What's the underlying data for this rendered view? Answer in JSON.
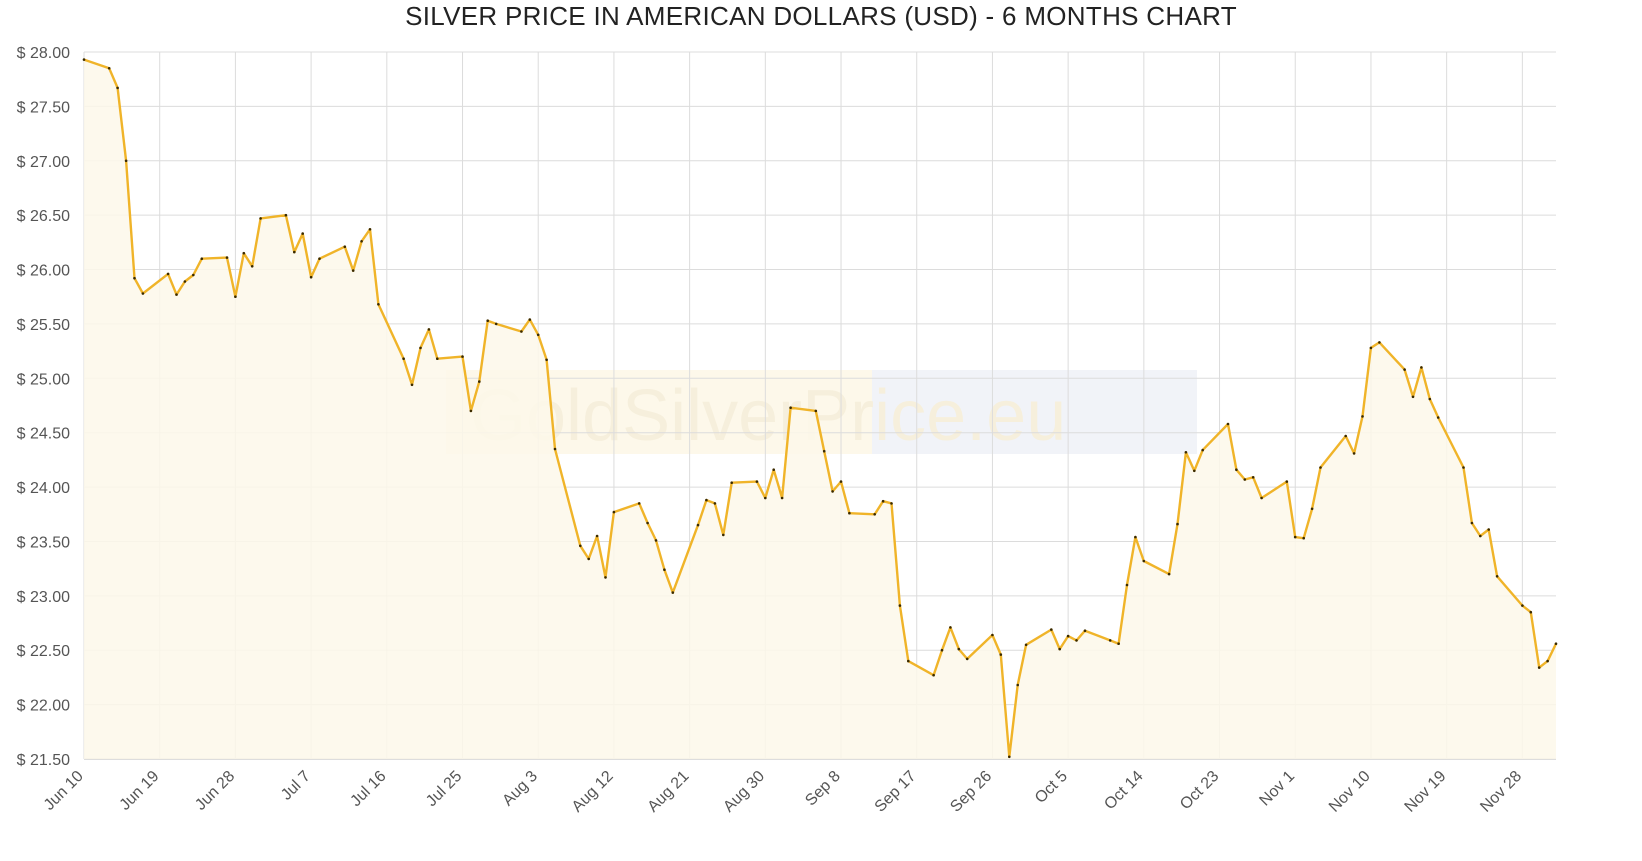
{
  "chart_data": {
    "type": "area",
    "title": "SILVER PRICE IN AMERICAN DOLLARS (USD) - 6 MONTHS CHART",
    "xlabel": "",
    "ylabel": "",
    "ylim": [
      21.5,
      28.0
    ],
    "y_ticks": [
      "$ 21.50",
      "$ 22.00",
      "$ 22.50",
      "$ 23.00",
      "$ 23.50",
      "$ 24.00",
      "$ 24.50",
      "$ 25.00",
      "$ 25.50",
      "$ 26.00",
      "$ 26.50",
      "$ 27.00",
      "$ 27.50",
      "$ 28.00"
    ],
    "x_ticks": [
      "Jun 10",
      "Jun 19",
      "Jun 28",
      "Jul 7",
      "Jul 16",
      "Jul 25",
      "Aug 3",
      "Aug 12",
      "Aug 21",
      "Aug 30",
      "Sep 8",
      "Sep 17",
      "Sep 26",
      "Oct 5",
      "Oct 14",
      "Oct 23",
      "Nov 1",
      "Nov 10",
      "Nov 19",
      "Nov 28"
    ],
    "grid": true,
    "colors": {
      "line": "#f0b429",
      "fill": "#fdf8ea",
      "marker": "#3a2a00"
    },
    "watermark": "GoldSilverPrice.eu",
    "series": [
      {
        "values": [
          [
            "Jun 10",
            27.93
          ],
          [
            "Jun 13",
            27.85
          ],
          [
            "Jun 14",
            27.67
          ],
          [
            "Jun 15",
            27.0
          ],
          [
            "Jun 16",
            25.92
          ],
          [
            "Jun 17",
            25.78
          ],
          [
            "Jun 20",
            25.96
          ],
          [
            "Jun 21",
            25.77
          ],
          [
            "Jun 22",
            25.89
          ],
          [
            "Jun 23",
            25.95
          ],
          [
            "Jun 24",
            26.1
          ],
          [
            "Jun 27",
            26.11
          ],
          [
            "Jun 28",
            25.75
          ],
          [
            "Jun 29",
            26.15
          ],
          [
            "Jun 30",
            26.03
          ],
          [
            "Jul 1",
            26.47
          ],
          [
            "Jul 4",
            26.5
          ],
          [
            "Jul 5",
            26.16
          ],
          [
            "Jul 6",
            26.33
          ],
          [
            "Jul 7",
            25.93
          ],
          [
            "Jul 8",
            26.1
          ],
          [
            "Jul 11",
            26.21
          ],
          [
            "Jul 12",
            25.99
          ],
          [
            "Jul 13",
            26.26
          ],
          [
            "Jul 14",
            26.37
          ],
          [
            "Jul 15",
            25.68
          ],
          [
            "Jul 18",
            25.18
          ],
          [
            "Jul 19",
            24.94
          ],
          [
            "Jul 20",
            25.28
          ],
          [
            "Jul 21",
            25.45
          ],
          [
            "Jul 22",
            25.18
          ],
          [
            "Jul 25",
            25.2
          ],
          [
            "Jul 26",
            24.7
          ],
          [
            "Jul 27",
            24.97
          ],
          [
            "Jul 28",
            25.53
          ],
          [
            "Jul 29",
            25.5
          ],
          [
            "Aug 1",
            25.43
          ],
          [
            "Aug 2",
            25.54
          ],
          [
            "Aug 3",
            25.4
          ],
          [
            "Aug 4",
            25.17
          ],
          [
            "Aug 5",
            24.35
          ],
          [
            "Aug 8",
            23.46
          ],
          [
            "Aug 9",
            23.34
          ],
          [
            "Aug 10",
            23.55
          ],
          [
            "Aug 11",
            23.17
          ],
          [
            "Aug 12",
            23.77
          ],
          [
            "Aug 15",
            23.85
          ],
          [
            "Aug 16",
            23.67
          ],
          [
            "Aug 17",
            23.51
          ],
          [
            "Aug 18",
            23.24
          ],
          [
            "Aug 19",
            23.03
          ],
          [
            "Aug 22",
            23.65
          ],
          [
            "Aug 23",
            23.88
          ],
          [
            "Aug 24",
            23.85
          ],
          [
            "Aug 25",
            23.56
          ],
          [
            "Aug 26",
            24.04
          ],
          [
            "Aug 29",
            24.05
          ],
          [
            "Aug 30",
            23.9
          ],
          [
            "Aug 31",
            24.16
          ],
          [
            "Sep 1",
            23.9
          ],
          [
            "Sep 2",
            24.73
          ],
          [
            "Sep 5",
            24.7
          ],
          [
            "Sep 6",
            24.33
          ],
          [
            "Sep 7",
            23.96
          ],
          [
            "Sep 8",
            24.05
          ],
          [
            "Sep 9",
            23.76
          ],
          [
            "Sep 12",
            23.75
          ],
          [
            "Sep 13",
            23.87
          ],
          [
            "Sep 14",
            23.85
          ],
          [
            "Sep 15",
            22.91
          ],
          [
            "Sep 16",
            22.4
          ],
          [
            "Sep 19",
            22.27
          ],
          [
            "Sep 20",
            22.5
          ],
          [
            "Sep 21",
            22.71
          ],
          [
            "Sep 22",
            22.51
          ],
          [
            "Sep 23",
            22.42
          ],
          [
            "Sep 26",
            22.64
          ],
          [
            "Sep 27",
            22.46
          ],
          [
            "Sep 28",
            21.52
          ],
          [
            "Sep 29",
            22.18
          ],
          [
            "Sep 30",
            22.55
          ],
          [
            "Oct 3",
            22.69
          ],
          [
            "Oct 4",
            22.51
          ],
          [
            "Oct 5",
            22.63
          ],
          [
            "Oct 6",
            22.59
          ],
          [
            "Oct 7",
            22.68
          ],
          [
            "Oct 10",
            22.59
          ],
          [
            "Oct 11",
            22.56
          ],
          [
            "Oct 12",
            23.1
          ],
          [
            "Oct 13",
            23.54
          ],
          [
            "Oct 14",
            23.32
          ],
          [
            "Oct 17",
            23.2
          ],
          [
            "Oct 18",
            23.66
          ],
          [
            "Oct 19",
            24.32
          ],
          [
            "Oct 20",
            24.15
          ],
          [
            "Oct 21",
            24.34
          ],
          [
            "Oct 24",
            24.58
          ],
          [
            "Oct 25",
            24.16
          ],
          [
            "Oct 26",
            24.07
          ],
          [
            "Oct 27",
            24.09
          ],
          [
            "Oct 28",
            23.9
          ],
          [
            "Oct 31",
            24.05
          ],
          [
            "Nov 1",
            23.54
          ],
          [
            "Nov 2",
            23.53
          ],
          [
            "Nov 3",
            23.8
          ],
          [
            "Nov 4",
            24.18
          ],
          [
            "Nov 7",
            24.47
          ],
          [
            "Nov 8",
            24.31
          ],
          [
            "Nov 9",
            24.65
          ],
          [
            "Nov 10",
            25.28
          ],
          [
            "Nov 11",
            25.33
          ],
          [
            "Nov 14",
            25.08
          ],
          [
            "Nov 15",
            24.83
          ],
          [
            "Nov 16",
            25.1
          ],
          [
            "Nov 17",
            24.81
          ],
          [
            "Nov 18",
            24.64
          ],
          [
            "Nov 21",
            24.18
          ],
          [
            "Nov 22",
            23.67
          ],
          [
            "Nov 23",
            23.55
          ],
          [
            "Nov 24",
            23.61
          ],
          [
            "Nov 25",
            23.18
          ],
          [
            "Nov 28",
            22.91
          ],
          [
            "Nov 29",
            22.85
          ],
          [
            "Nov 30",
            22.34
          ],
          [
            "Dec 1",
            22.4
          ],
          [
            "Dec 2",
            22.56
          ]
        ]
      }
    ]
  }
}
